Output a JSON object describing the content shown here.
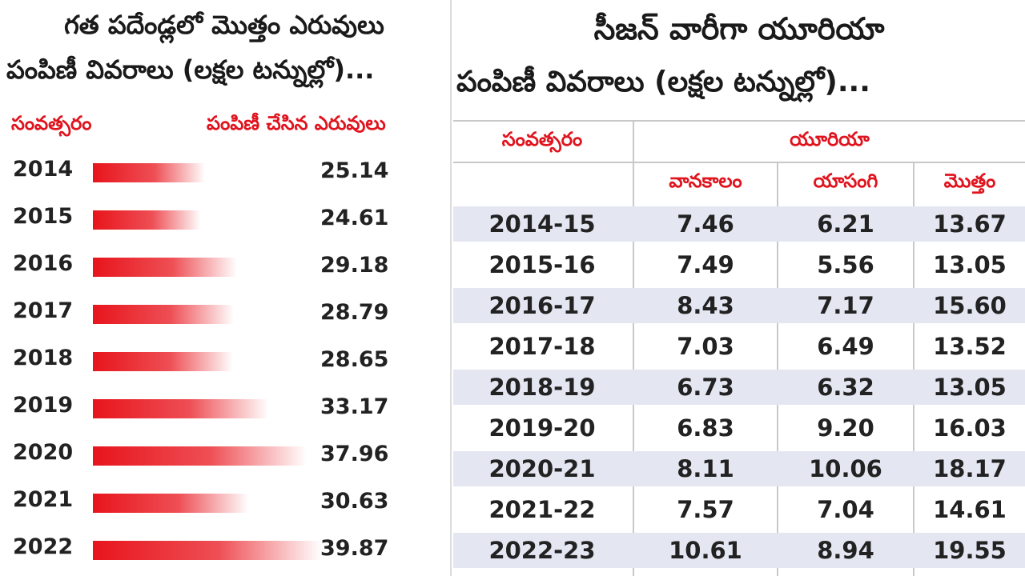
{
  "left_panel": {
    "title_line1": "గత పదేండ్లలో మొత్తం ఎరువులు",
    "title_line2": "పంపిణీ వివరాలు (లక్షల టన్నుల్లో)...",
    "col_year_header": "సంవత్సరం",
    "col_value_header": "పంపిణీ చేసిన ఎరువులు"
  },
  "right_panel": {
    "title_line1": "సీజన్ వారీగా యూరియా",
    "title_line2": "పంపిణీ వివరాలు (లక్షల టన్నుల్లో)...",
    "col_year_header": "సంవత్సరం",
    "group_header": "యూరియా",
    "sub_headers": [
      "వానకాలం",
      "యాసంగి",
      "మొత్తం"
    ],
    "rows": [
      [
        "2014-15",
        "7.46",
        "6.21",
        "13.67"
      ],
      [
        "2015-16",
        "7.49",
        "5.56",
        "13.05"
      ],
      [
        "2016-17",
        "8.43",
        "7.17",
        "15.60"
      ],
      [
        "2017-18",
        "7.03",
        "6.49",
        "13.52"
      ],
      [
        "2018-19",
        "6.73",
        "6.32",
        "13.05"
      ],
      [
        "2019-20",
        "6.83",
        "9.20",
        "16.03"
      ],
      [
        "2020-21",
        "8.11",
        "10.06",
        "18.17"
      ],
      [
        "2021-22",
        "7.57",
        "7.04",
        "14.61"
      ],
      [
        "2022-23",
        "10.61",
        "8.94",
        "19.55"
      ]
    ]
  },
  "chart_data": [
    {
      "type": "bar",
      "orientation": "horizontal",
      "title": "గత పదేండ్లలో మొత్తం ఎరువులు పంపిణీ వివరాలు (లక్షల టన్నుల్లో)...",
      "categories": [
        "2014",
        "2015",
        "2016",
        "2017",
        "2018",
        "2019",
        "2020",
        "2021",
        "2022"
      ],
      "values": [
        25.14,
        24.61,
        29.18,
        28.79,
        28.65,
        33.17,
        37.96,
        30.63,
        39.87
      ],
      "value_labels": [
        "25.14",
        "24.61",
        "29.18",
        "28.79",
        "28.65",
        "33.17",
        "37.96",
        "30.63",
        "39.87"
      ],
      "bar_color": "#e8141c",
      "grid": false,
      "legend": "none"
    },
    {
      "type": "table",
      "title": "సీజన్ వారీగా యూరియా పంపిణీ వివరాలు (లక్షల టన్నుల్లో)...",
      "columns": [
        "సంవత్సరం",
        "వానకాలం",
        "యాసంగి",
        "మొత్తం"
      ],
      "rows": [
        [
          "2014-15",
          7.46,
          6.21,
          13.67
        ],
        [
          "2015-16",
          7.49,
          5.56,
          13.05
        ],
        [
          "2016-17",
          8.43,
          7.17,
          15.6
        ],
        [
          "2017-18",
          7.03,
          6.49,
          13.52
        ],
        [
          "2018-19",
          6.73,
          6.32,
          13.05
        ],
        [
          "2019-20",
          6.83,
          9.2,
          16.03
        ],
        [
          "2020-21",
          8.11,
          10.06,
          18.17
        ],
        [
          "2021-22",
          7.57,
          7.04,
          14.61
        ],
        [
          "2022-23",
          10.61,
          8.94,
          19.55
        ]
      ],
      "row_shading": "#e4e6f2",
      "header_color": "#e0141e"
    }
  ]
}
